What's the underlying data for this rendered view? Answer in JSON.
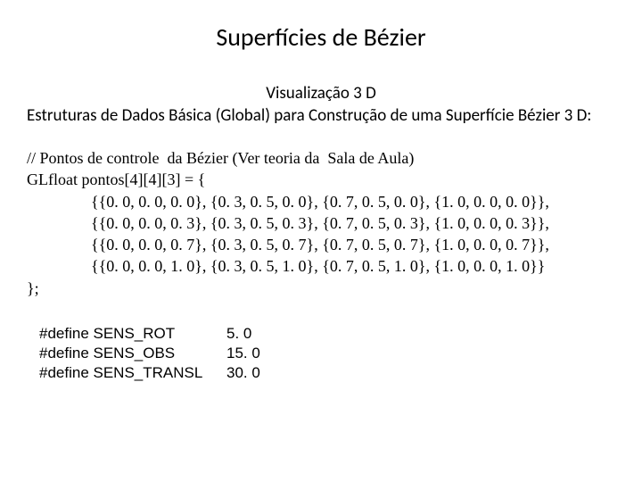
{
  "title": "Superfícies de Bézier",
  "subtitle_center": "Visualização 3 D",
  "subtitle_full": "Estruturas de Dados Básica (Global) para Construção de uma Superfície Bézier 3 D:",
  "code": {
    "comment": "// Pontos de controle  da Bézier (Ver teoria da  Sala de Aula)",
    "decl": "GLfloat pontos[4][4][3] = {",
    "rows": [
      "{{0. 0, 0. 0, 0. 0}, {0. 3, 0. 5, 0. 0}, {0. 7, 0. 5, 0. 0}, {1. 0, 0. 0, 0. 0}},",
      "{{0. 0, 0. 0, 0. 3}, {0. 3, 0. 5, 0. 3}, {0. 7, 0. 5, 0. 3}, {1. 0, 0. 0, 0. 3}},",
      "{{0. 0, 0. 0, 0. 7}, {0. 3, 0. 5, 0. 7}, {0. 7, 0. 5, 0. 7}, {1. 0, 0. 0, 0. 7}},",
      "{{0. 0, 0. 0, 1. 0}, {0. 3, 0. 5, 1. 0}, {0. 7, 0. 5, 1. 0}, {1. 0, 0. 0, 1. 0}}"
    ],
    "close": "};"
  },
  "defines": [
    {
      "key": "#define SENS_ROT",
      "val": "5. 0"
    },
    {
      "key": "#define SENS_OBS",
      "val": "15. 0"
    },
    {
      "key": "#define SENS_TRANSL",
      "val": "30. 0"
    }
  ]
}
